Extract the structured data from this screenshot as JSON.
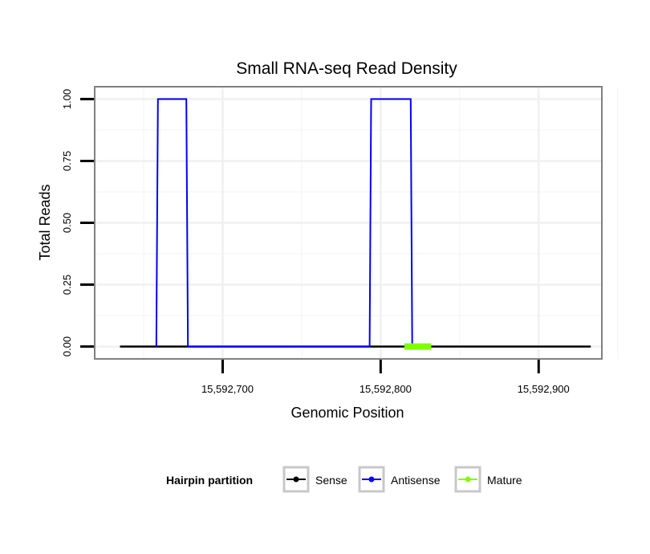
{
  "chart_data": {
    "type": "line",
    "title": "Small RNA-seq Read Density",
    "xlabel": "Genomic Position",
    "ylabel": "Total Reads",
    "xlim": [
      15592619,
      15592940
    ],
    "ylim": [
      -0.05,
      1.05
    ],
    "x_ticks": [
      15592700,
      15592800,
      15592900
    ],
    "x_tick_labels": [
      "15,592,700",
      "15,592,800",
      "15,592,900"
    ],
    "y_ticks": [
      0,
      0.25,
      0.5,
      0.75,
      1.0
    ],
    "y_tick_labels": [
      "0.00",
      "0.25",
      "0.50",
      "0.75",
      "1.00"
    ],
    "grid": true,
    "legend": {
      "title": "Hairpin partition",
      "position": "bottom",
      "entries": [
        "Sense",
        "Antisense",
        "Mature"
      ]
    },
    "series": [
      {
        "name": "Sense",
        "color": "#000000",
        "x": [
          15592635,
          15592933
        ],
        "y": [
          0,
          0
        ]
      },
      {
        "name": "Antisense",
        "color": "#0000FF",
        "x": [
          15592658,
          15592659,
          15592677,
          15592678,
          15592793,
          15592794,
          15592819,
          15592820
        ],
        "y": [
          0,
          1,
          1,
          0,
          0,
          1,
          1,
          0
        ]
      },
      {
        "name": "Mature",
        "color": "#7FFF00",
        "x": [
          15592815,
          15592832
        ],
        "y": [
          0,
          0
        ]
      }
    ]
  }
}
